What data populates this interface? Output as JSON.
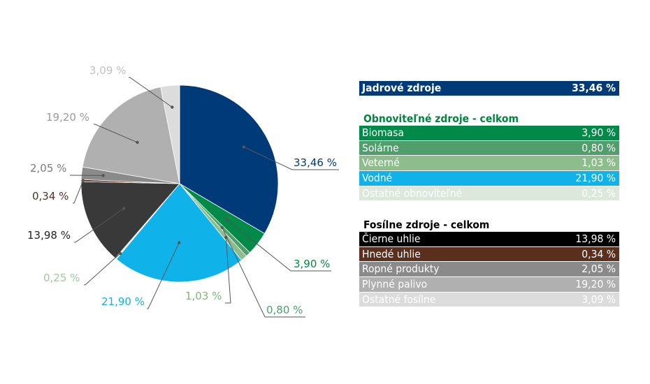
{
  "chart_data": {
    "type": "pie",
    "slices": [
      {
        "label": "Jadrové zdroje",
        "value": 33.46,
        "display": "33,46 %",
        "color": "#003a78",
        "label_color": "#003a78"
      },
      {
        "label": "Biomasa",
        "value": 3.9,
        "display": "3,90 %",
        "color": "#008a47",
        "label_color": "#008a47"
      },
      {
        "label": "Solárne",
        "value": 0.8,
        "display": "0,80 %",
        "color": "#4f9e6b",
        "label_color": "#4f9e6b"
      },
      {
        "label": "Veterné",
        "value": 1.03,
        "display": "1,03 %",
        "color": "#8dbd8b",
        "label_color": "#7fb47c"
      },
      {
        "label": "Vodné",
        "value": 21.9,
        "display": "21,90 %",
        "color": "#0fb3e9",
        "label_color": "#0fb3e9"
      },
      {
        "label": "Ostatné obnoviteľné",
        "value": 0.25,
        "display": "0,25 %",
        "color": "#d4e6d4",
        "label_color": "#9ccb9c"
      },
      {
        "label": "Čierne uhlie",
        "value": 13.98,
        "display": "13,98 %",
        "color": "#393939",
        "label_color": "#231f20"
      },
      {
        "label": "Hnedé uhlie",
        "value": 0.34,
        "display": "0,34 %",
        "color": "#5a2f1d",
        "label_color": "#5a2f1d"
      },
      {
        "label": "Ropné produkty",
        "value": 2.05,
        "display": "2,05 %",
        "color": "#8a8a8a",
        "label_color": "#7a7a7a"
      },
      {
        "label": "Plynné palivo",
        "value": 19.2,
        "display": "19,20 %",
        "color": "#b0b0b0",
        "label_color": "#9a9a9a"
      },
      {
        "label": "Ostatné fosílne",
        "value": 3.09,
        "display": "3,09 %",
        "color": "#dcdcdc",
        "label_color": "#c0c0c0"
      }
    ]
  },
  "legend": {
    "nuclear": {
      "label": "Jadrové zdroje",
      "value": "33,46 %",
      "color": "#003a78"
    },
    "renewables_header": "Obnoviteľné zdroje - celkom",
    "renewables_header_color": "#00853e",
    "renewables": [
      {
        "label": "Biomasa",
        "value": "3,90 %",
        "color": "#008a47"
      },
      {
        "label": "Solárne",
        "value": "0,80 %",
        "color": "#4f9e6b"
      },
      {
        "label": "Veterné",
        "value": "1,03 %",
        "color": "#8dbd8b"
      },
      {
        "label": "Vodné",
        "value": "21,90 %",
        "color": "#0fb3e9"
      },
      {
        "label": "Ostatné obnoviteľné",
        "value": "0,25 %",
        "color": "#dbe8db"
      }
    ],
    "fossil_header": "Fosílne zdroje - celkom",
    "fossil": [
      {
        "label": "Čierne uhlie",
        "value": "13,98 %",
        "color": "#000000"
      },
      {
        "label": "Hnedé uhlie",
        "value": "0,34 %",
        "color": "#5a2f1d"
      },
      {
        "label": "Ropné produkty",
        "value": "2,05 %",
        "color": "#8a8a8a"
      },
      {
        "label": "Plynné palivo",
        "value": "19,20 %",
        "color": "#b0b0b0"
      },
      {
        "label": "Ostatné fosílne",
        "value": "3,09 %",
        "color": "#dcdcdc"
      }
    ]
  }
}
